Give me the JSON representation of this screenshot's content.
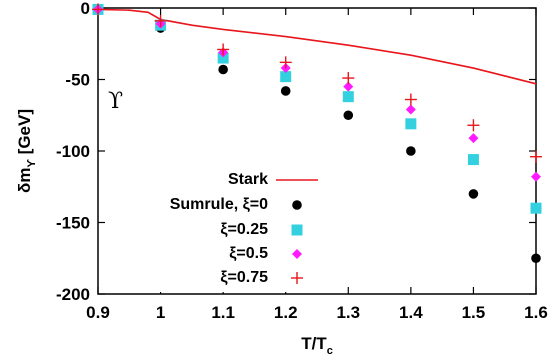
{
  "chart_data": {
    "type": "scatter",
    "xlabel": "T/T",
    "xlabel_sub": "c",
    "ylabel": "δm",
    "ylabel_sub": "ϒ",
    "ylabel_unit": " [GeV]",
    "xlim": [
      0.9,
      1.6
    ],
    "ylim": [
      -200,
      0
    ],
    "x_ticks": [
      0.9,
      1.0,
      1.1,
      1.2,
      1.3,
      1.4,
      1.5,
      1.6
    ],
    "x_tick_labels": [
      "0.9",
      "1",
      "1.1",
      "1.2",
      "1.3",
      "1.4",
      "1.5",
      "1.6"
    ],
    "y_ticks": [
      0,
      -50,
      -100,
      -150,
      -200
    ],
    "y_tick_labels": [
      "0",
      "-50",
      "-100",
      "-150",
      "-200"
    ],
    "annotation": "ϒ",
    "legend_position": "bottom-left",
    "series": [
      {
        "name": "Stark",
        "kind": "line",
        "color": "#e8161b",
        "x": [
          0.9,
          0.95,
          0.98,
          1.0,
          1.05,
          1.1,
          1.2,
          1.3,
          1.4,
          1.5,
          1.6
        ],
        "y": [
          -1,
          -1.5,
          -3,
          -8,
          -12,
          -15,
          -20,
          -26,
          -33,
          -42,
          -53
        ]
      },
      {
        "name": "Sumrule, ξ=0",
        "kind": "circle",
        "color": "#000000",
        "x": [
          0.9,
          1.0,
          1.1,
          1.2,
          1.3,
          1.4,
          1.5,
          1.6
        ],
        "y": [
          -1,
          -14,
          -43,
          -58,
          -75,
          -100,
          -130,
          -175
        ]
      },
      {
        "name": "ξ=0.25",
        "kind": "square",
        "color": "#33d1e0",
        "x": [
          0.9,
          1.0,
          1.1,
          1.2,
          1.3,
          1.4,
          1.5,
          1.6
        ],
        "y": [
          -1,
          -12,
          -35,
          -48,
          -62,
          -81,
          -106,
          -140
        ]
      },
      {
        "name": "ξ=0.5",
        "kind": "diamond",
        "color": "#ff1aff",
        "x": [
          0.9,
          1.0,
          1.1,
          1.2,
          1.3,
          1.4,
          1.5,
          1.6
        ],
        "y": [
          -1,
          -11,
          -31,
          -42,
          -55,
          -71,
          -91,
          -118
        ]
      },
      {
        "name": "ξ=0.75",
        "kind": "plus",
        "color": "#e8161b",
        "x": [
          0.9,
          1.0,
          1.1,
          1.2,
          1.3,
          1.4,
          1.5,
          1.6
        ],
        "y": [
          -1,
          -9,
          -29,
          -38,
          -49,
          -64,
          -82,
          -104
        ]
      }
    ]
  }
}
